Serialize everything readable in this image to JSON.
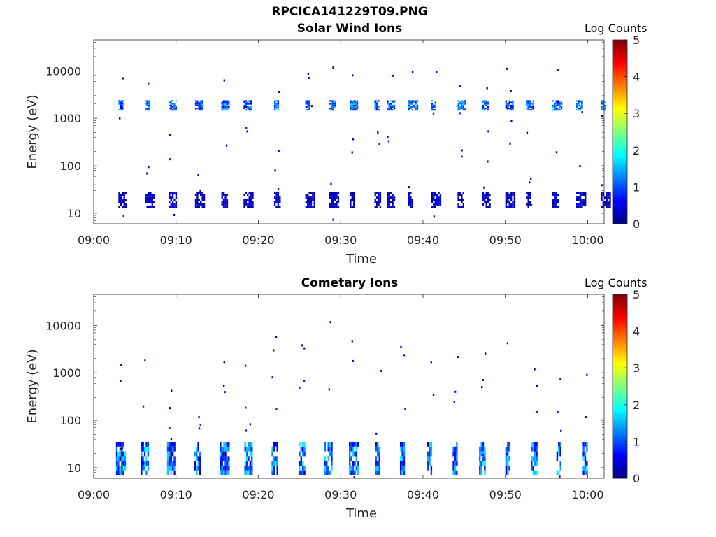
{
  "figure": {
    "main_title": "RPCICA141229T09.PNG"
  },
  "chart_data": [
    {
      "type": "heatmap",
      "title": "Solar Wind Ions",
      "xlabel": "Time",
      "ylabel": "Energy (eV)",
      "x_ticks": [
        "09:00",
        "09:10",
        "09:20",
        "09:30",
        "09:40",
        "09:50",
        "10:00"
      ],
      "y_scale": "log",
      "y_ticks": [
        "10",
        "100",
        "1000",
        "10000"
      ],
      "ylim": [
        6,
        45000
      ],
      "colorbar": {
        "label": "Log Counts",
        "range": [
          0,
          5
        ],
        "ticks": [
          "0",
          "1",
          "2",
          "3",
          "4",
          "5"
        ],
        "colormap": "jet"
      },
      "bands": [
        {
          "energy_eV": [
            1450,
            2400
          ],
          "log_counts_range": [
            0.5,
            1.7
          ]
        },
        {
          "energy_eV": [
            13,
            28
          ],
          "log_counts_range": [
            0.1,
            0.6
          ]
        }
      ],
      "scan_start_minutes": [
        3.0,
        6.2,
        9.1,
        12.3,
        15.5,
        18.2,
        21.9,
        25.7,
        28.6,
        31.1,
        34.1,
        35.6,
        38.2,
        41.0,
        44.2,
        47.2,
        50.0,
        52.5,
        55.7,
        58.6,
        61.6
      ]
    },
    {
      "type": "heatmap",
      "title": "Cometary Ions",
      "xlabel": "Time",
      "ylabel": "Energy (eV)",
      "x_ticks": [
        "09:00",
        "09:10",
        "09:20",
        "09:30",
        "09:40",
        "09:50",
        "10:00"
      ],
      "y_scale": "log",
      "y_ticks": [
        "10",
        "100",
        "1000",
        "10000"
      ],
      "ylim": [
        6,
        45000
      ],
      "colorbar": {
        "label": "Log Counts",
        "range": [
          0,
          5
        ],
        "ticks": [
          "0",
          "1",
          "2",
          "3",
          "4",
          "5"
        ],
        "colormap": "jet"
      },
      "bands": [
        {
          "energy_eV": [
            7,
            35
          ],
          "log_counts_range": [
            0.3,
            1.9
          ]
        }
      ],
      "scan_start_minutes": [
        2.7,
        5.7,
        8.9,
        12.2,
        15.3,
        18.3,
        21.6,
        24.9,
        28.0,
        31.0,
        34.2,
        37.2,
        40.5,
        43.6,
        46.8,
        50.0,
        53.1,
        56.2,
        59.4
      ]
    }
  ]
}
